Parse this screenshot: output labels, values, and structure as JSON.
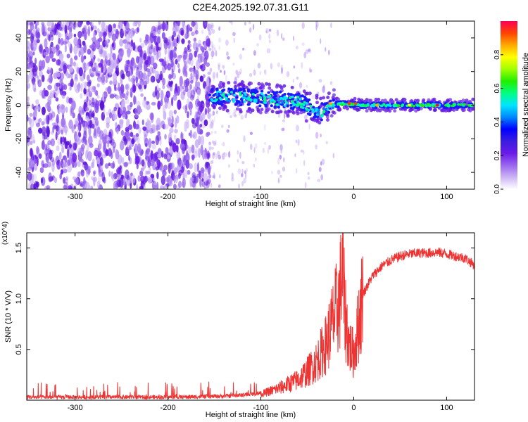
{
  "title": "C2E4.2025.192.07.31.G11",
  "colors": {
    "snr_line": "#ee3333",
    "colorbar": [
      "#ffffff",
      "#cdb4f5",
      "#9966ee",
      "#6a1ae8",
      "#3a1ee0",
      "#0000ff",
      "#0088ff",
      "#00e5ff",
      "#00ff80",
      "#22ee00",
      "#a0ff00",
      "#ffff00",
      "#ffaa00",
      "#ff4400",
      "#ff0055"
    ]
  },
  "chart_data": [
    {
      "type": "heatmap",
      "name": "spectrogram",
      "xlabel": "Height of straight line (km)",
      "ylabel": "Frequency (Hz)",
      "xlim": [
        -352,
        130
      ],
      "ylim": [
        -50,
        50
      ],
      "xticks": [
        -300,
        -200,
        -100,
        0,
        100
      ],
      "yticks": [
        -40,
        -20,
        0,
        20,
        40
      ],
      "colorbar": {
        "label": "Normalized spectral amplitude",
        "range": [
          0,
          1
        ],
        "ticks": [
          "0.0",
          "0.2",
          "0.4",
          "0.6",
          "0.8"
        ]
      },
      "features": {
        "noise_region_x": [
          -352,
          -155
        ],
        "transition_region_x": [
          -155,
          -20
        ],
        "signal_band_x": [
          -155,
          130
        ],
        "signal_center_hz": [
          [
            -155,
            5
          ],
          [
            -140,
            5
          ],
          [
            -120,
            5
          ],
          [
            -100,
            4
          ],
          [
            -80,
            3
          ],
          [
            -60,
            2
          ],
          [
            -45,
            -2
          ],
          [
            -35,
            -4
          ],
          [
            -25,
            0
          ],
          [
            -10,
            1
          ],
          [
            10,
            0
          ],
          [
            50,
            0
          ],
          [
            100,
            0
          ],
          [
            130,
            0
          ]
        ],
        "peak_amplitude": 1.0
      },
      "grid": false
    },
    {
      "type": "line",
      "name": "snr",
      "xlabel": "Height of straight line (km)",
      "ylabel": "SNR (10 * V/V)",
      "y_multiplier": "(x10^4)",
      "xlim": [
        -352,
        130
      ],
      "ylim": [
        0,
        1.65
      ],
      "xticks": [
        -300,
        -200,
        -100,
        0,
        100
      ],
      "yticks": [
        "0.5",
        "1.0",
        "1.5"
      ],
      "series": [
        {
          "x": [
            -352,
            -320,
            -280,
            -240,
            -200,
            -160,
            -140,
            -120,
            -100,
            -90,
            -80,
            -70,
            -60,
            -50,
            -40,
            -30,
            -25,
            -20,
            -15,
            -12,
            -10,
            -5,
            0,
            5,
            10,
            20,
            30,
            40,
            50,
            60,
            70,
            80,
            90,
            100,
            110,
            120,
            130
          ],
          "y": [
            0.02,
            0.02,
            0.02,
            0.02,
            0.02,
            0.025,
            0.03,
            0.04,
            0.06,
            0.09,
            0.12,
            0.16,
            0.2,
            0.28,
            0.38,
            0.55,
            0.7,
            0.85,
            1.0,
            1.35,
            0.9,
            0.55,
            0.45,
            0.75,
            1.05,
            1.22,
            1.32,
            1.38,
            1.42,
            1.44,
            1.45,
            1.45,
            1.46,
            1.44,
            1.42,
            1.4,
            1.33
          ]
        }
      ],
      "grid": false
    }
  ]
}
